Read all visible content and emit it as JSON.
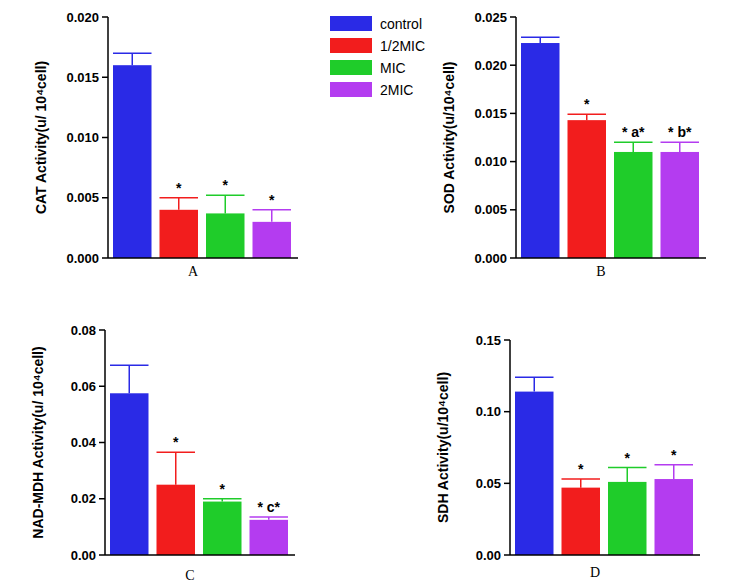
{
  "chart_data": [
    {
      "type": "bar",
      "title": "A",
      "y_label": "CAT Activity(u/ 10⁴cell)",
      "categories": [
        "control",
        "1/2MIC",
        "MIC",
        "2MIC"
      ],
      "values": [
        0.016,
        0.004,
        0.0037,
        0.003
      ],
      "errors": [
        0.001,
        0.001,
        0.0015,
        0.001
      ],
      "annotations": [
        null,
        "*",
        "*",
        "*"
      ],
      "colors": [
        "#2a2ae6",
        "#f21d1d",
        "#1fcc2a",
        "#b43cf0"
      ],
      "ylim": [
        0,
        0.02
      ],
      "yticks": [
        {
          "value": 0,
          "label": "0.000"
        },
        {
          "value": 0.005,
          "label": "0.005"
        },
        {
          "value": 0.01,
          "label": "0.010"
        },
        {
          "value": 0.015,
          "label": "0.015"
        },
        {
          "value": 0.02,
          "label": "0.020"
        }
      ],
      "tick_labels": "y",
      "legend": "right"
    },
    {
      "type": "bar",
      "title": "B",
      "y_label": "SOD Activity(u/10⁴cell)",
      "categories": [
        "control",
        "1/2MIC",
        "MIC",
        "2MIC"
      ],
      "values": [
        0.0223,
        0.0143,
        0.011,
        0.011
      ],
      "errors": [
        0.0006,
        0.0006,
        0.001,
        0.001
      ],
      "annotations": [
        null,
        "*",
        "* a*",
        "* b*"
      ],
      "colors": [
        "#2a2ae6",
        "#f21d1d",
        "#1fcc2a",
        "#b43cf0"
      ],
      "ylim": [
        0,
        0.025
      ],
      "yticks": [
        {
          "value": 0,
          "label": "0.000"
        },
        {
          "value": 0.005,
          "label": "0.005"
        },
        {
          "value": 0.01,
          "label": "0.010"
        },
        {
          "value": 0.015,
          "label": "0.015"
        },
        {
          "value": 0.02,
          "label": "0.020"
        },
        {
          "value": 0.025,
          "label": "0.025"
        }
      ],
      "tick_labels": "y"
    },
    {
      "type": "bar",
      "title": "C",
      "y_label": "NAD-MDH Activity(u/ 10⁴cell)",
      "categories": [
        "control",
        "1/2MIC",
        "MIC",
        "2MIC"
      ],
      "values": [
        0.0575,
        0.025,
        0.019,
        0.0125
      ],
      "errors": [
        0.01,
        0.0115,
        0.001,
        0.001
      ],
      "annotations": [
        null,
        "*",
        "*",
        "* c*"
      ],
      "colors": [
        "#2a2ae6",
        "#f21d1d",
        "#1fcc2a",
        "#b43cf0"
      ],
      "ylim": [
        0,
        0.08
      ],
      "yticks": [
        {
          "value": 0,
          "label": "0.00"
        },
        {
          "value": 0.02,
          "label": "0.02"
        },
        {
          "value": 0.04,
          "label": "0.04"
        },
        {
          "value": 0.06,
          "label": "0.06"
        },
        {
          "value": 0.08,
          "label": "0.08"
        }
      ],
      "tick_labels": "y"
    },
    {
      "type": "bar",
      "title": "D",
      "y_label": "SDH Activity(u/10⁴cell)",
      "categories": [
        "control",
        "1/2MIC",
        "MIC",
        "2MIC"
      ],
      "values": [
        0.114,
        0.047,
        0.051,
        0.053
      ],
      "errors": [
        0.01,
        0.006,
        0.01,
        0.01
      ],
      "annotations": [
        null,
        "*",
        "*",
        "*"
      ],
      "colors": [
        "#2a2ae6",
        "#f21d1d",
        "#1fcc2a",
        "#b43cf0"
      ],
      "ylim": [
        0,
        0.15
      ],
      "yticks": [
        {
          "value": 0,
          "label": "0.00"
        },
        {
          "value": 0.05,
          "label": "0.05"
        },
        {
          "value": 0.1,
          "label": "0.10"
        },
        {
          "value": 0.15,
          "label": "0.15"
        }
      ],
      "tick_labels": "y"
    }
  ]
}
